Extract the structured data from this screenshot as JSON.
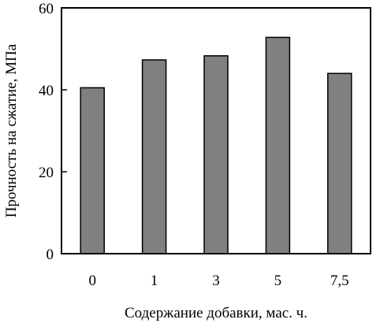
{
  "chart_data": {
    "type": "bar",
    "categories": [
      "0",
      "1",
      "3",
      "5",
      "7,5"
    ],
    "values": [
      40.5,
      47.3,
      48.3,
      52.8,
      44.0
    ],
    "title": "",
    "xlabel": "Содержание добавки, мас. ч.",
    "ylabel": "Прочность на сжатие, МПа",
    "ylim": [
      0,
      60
    ],
    "yticks": [
      0,
      20,
      40,
      60
    ],
    "grid": false,
    "legend": "none",
    "bar_color": "#808080",
    "edge_color": "#000000"
  }
}
